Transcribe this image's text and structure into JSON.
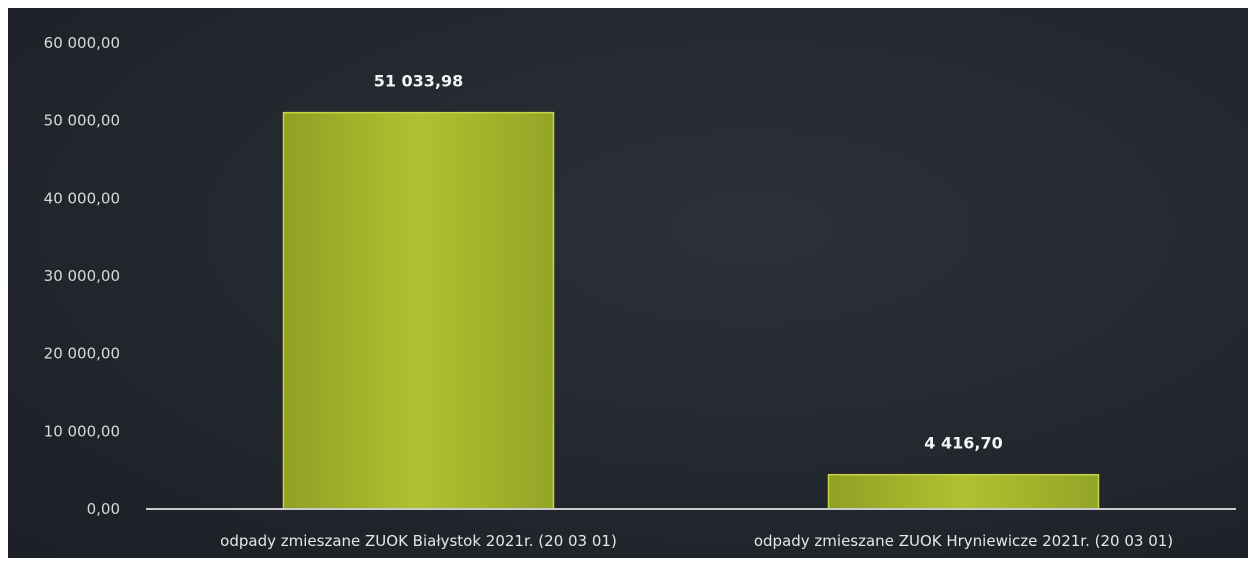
{
  "chart_data": {
    "type": "bar",
    "categories": [
      "odpady zmieszane ZUOK Białystok 2021r. (20 03 01)",
      "odpady zmieszane ZUOK Hryniewicze 2021r. (20 03 01)"
    ],
    "values": [
      51033.98,
      4416.7
    ],
    "data_labels": [
      "51 033,98",
      "4 416,70"
    ],
    "y_ticks": [
      "0,00",
      "10 000,00",
      "20 000,00",
      "30 000,00",
      "40 000,00",
      "50 000,00",
      "60 000,00"
    ],
    "ylim": [
      0,
      60000
    ],
    "title": "",
    "xlabel": "",
    "ylabel": "",
    "grid": false,
    "legend": "none",
    "colors": {
      "background": "#262a31",
      "bar": "#a4b52a",
      "bar_highlight": "#c2d23c",
      "axis": "#c9cbce",
      "text": "#e4e6e8"
    }
  }
}
